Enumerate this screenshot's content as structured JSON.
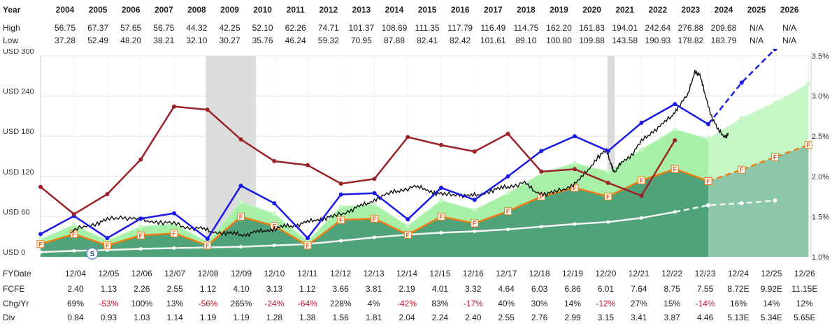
{
  "top_table": {
    "year_label": "Year",
    "high_label": "High",
    "low_label": "Low",
    "years": [
      "2004",
      "2005",
      "2006",
      "2007",
      "2008",
      "2009",
      "2010",
      "2011",
      "2012",
      "2013",
      "2014",
      "2015",
      "2016",
      "2017",
      "2018",
      "2019",
      "2020",
      "2021",
      "2022",
      "2023",
      "2024",
      "2025",
      "2026"
    ],
    "high": [
      "56.75",
      "67.37",
      "57.65",
      "56.75",
      "44.32",
      "42.25",
      "52.10",
      "62.26",
      "74.71",
      "101.37",
      "108.69",
      "111.35",
      "117.79",
      "116.49",
      "114.75",
      "162.20",
      "161.83",
      "194.01",
      "242.64",
      "276.88",
      "209.68",
      "N/A",
      "N/A"
    ],
    "low": [
      "37.28",
      "52.49",
      "48.20",
      "38.21",
      "32.10",
      "30.27",
      "35.76",
      "46.24",
      "59.32",
      "70.95",
      "87.88",
      "82.41",
      "82.42",
      "101.61",
      "89.10",
      "100.80",
      "109.88",
      "143.58",
      "190.93",
      "178.82",
      "183.79",
      "N/A",
      "N/A"
    ]
  },
  "bottom_table": {
    "fy_label": "FYDate",
    "fcfe_label": "FCFE",
    "chg_label": "Chg/Yr",
    "div_label": "Div",
    "dates": [
      "12/04",
      "12/05",
      "12/06",
      "12/07",
      "12/08",
      "12/09",
      "12/10",
      "12/11",
      "12/12",
      "12/13",
      "12/14",
      "12/15",
      "12/16",
      "12/17",
      "12/18",
      "12/19",
      "12/20",
      "12/21",
      "12/22",
      "12/23",
      "12/24",
      "12/25",
      "12/26"
    ],
    "fcfe": [
      "2.40",
      "1.13",
      "2.26",
      "2.55",
      "1.12",
      "4.10",
      "3.13",
      "1.12",
      "3.66",
      "3.81",
      "2.19",
      "4.01",
      "3.32",
      "4.64",
      "6.03",
      "6.86",
      "6.01",
      "7.64",
      "8.75",
      "7.55",
      "8.72E",
      "9.92E",
      "11.15E"
    ],
    "chg": [
      "69%",
      "-53%",
      "100%",
      "13%",
      "-56%",
      "265%",
      "-24%",
      "-64%",
      "228%",
      "4%",
      "-42%",
      "83%",
      "-17%",
      "40%",
      "30%",
      "14%",
      "-12%",
      "27%",
      "15%",
      "-14%",
      "16%",
      "14%",
      "12%"
    ],
    "div": [
      "0.84",
      "0.93",
      "1.03",
      "1.14",
      "1.19",
      "1.19",
      "1.28",
      "1.38",
      "1.56",
      "1.81",
      "2.04",
      "2.24",
      "2.40",
      "2.55",
      "2.76",
      "2.99",
      "3.15",
      "3.41",
      "3.87",
      "4.46",
      "5.13E",
      "5.34E",
      "5.65E"
    ]
  },
  "chart_data": {
    "type": "line",
    "x_labels": [
      "12/04",
      "12/05",
      "12/06",
      "12/07",
      "12/08",
      "12/09",
      "12/10",
      "12/11",
      "12/12",
      "12/13",
      "12/14",
      "12/15",
      "12/16",
      "12/17",
      "12/18",
      "12/19",
      "12/20",
      "12/21",
      "12/22",
      "12/23",
      "12/24",
      "12/25",
      "12/26"
    ],
    "left_axis": {
      "ticks": [
        "USD 0",
        "USD 60",
        "USD 120",
        "USD 180",
        "USD 240",
        "USD 300"
      ],
      "range": [
        0,
        300
      ]
    },
    "right_axis": {
      "ticks": [
        "1.0%",
        "1.5%",
        "2.0%",
        "2.5%",
        "3.0%",
        "3.5%"
      ],
      "range": [
        1.0,
        3.5
      ]
    },
    "recession_bands": [
      {
        "from": 2007.95,
        "to": 2009.45
      },
      {
        "from": 2019.98,
        "to": 2020.2
      }
    ],
    "blue_line": {
      "actual": [
        34,
        61,
        28,
        57,
        65,
        27,
        106,
        80,
        28,
        93,
        95,
        56,
        103,
        85,
        120,
        158,
        180,
        158,
        200,
        228,
        198
      ],
      "projected": [
        198,
        260,
        310,
        345
      ]
    },
    "orange_fcfe_value": {
      "actual": [
        19,
        34,
        17,
        32,
        35,
        17,
        60,
        46,
        17,
        55,
        57,
        33,
        60,
        50,
        68,
        90,
        103,
        90,
        114,
        131,
        113
      ],
      "projected": [
        113,
        130,
        149,
        167
      ]
    },
    "white_dividend_line": {
      "actual": [
        7,
        9,
        10,
        12,
        13,
        14,
        15,
        17,
        19,
        24,
        29,
        33,
        36,
        38,
        41,
        45,
        49,
        52,
        58,
        67
      ],
      "projected": [
        67,
        77,
        80,
        84
      ]
    },
    "green_band_top": {
      "actual": [
        26,
        48,
        24,
        45,
        49,
        22,
        82,
        64,
        23,
        75,
        78,
        46,
        84,
        70,
        95,
        124,
        140,
        127,
        160,
        190,
        176
      ],
      "projected": [
        176,
        207,
        230,
        258
      ]
    },
    "dark_red_dividend_yield": [
      1.87,
      1.53,
      1.78,
      2.21,
      2.87,
      2.83,
      2.46,
      2.19,
      2.14,
      1.91,
      1.97,
      2.49,
      2.39,
      2.31,
      2.53,
      2.06,
      2.09,
      1.92,
      1.76,
      2.45
    ],
    "price_series_points": [
      [
        2003.9,
        36
      ],
      [
        2004.3,
        46
      ],
      [
        2004.7,
        50
      ],
      [
        2005.0,
        55
      ],
      [
        2005.4,
        60
      ],
      [
        2005.8,
        56
      ],
      [
        2006.2,
        54
      ],
      [
        2006.6,
        52
      ],
      [
        2007.0,
        49
      ],
      [
        2007.4,
        44
      ],
      [
        2007.8,
        42
      ],
      [
        2008.1,
        38
      ],
      [
        2008.5,
        36
      ],
      [
        2008.8,
        34
      ],
      [
        2009.1,
        33
      ],
      [
        2009.4,
        36
      ],
      [
        2009.7,
        39
      ],
      [
        2010.0,
        42
      ],
      [
        2010.3,
        45
      ],
      [
        2010.6,
        47
      ],
      [
        2010.9,
        50
      ],
      [
        2011.2,
        55
      ],
      [
        2011.5,
        58
      ],
      [
        2011.8,
        60
      ],
      [
        2012.2,
        68
      ],
      [
        2012.5,
        74
      ],
      [
        2012.8,
        80
      ],
      [
        2013.1,
        88
      ],
      [
        2013.5,
        95
      ],
      [
        2013.8,
        100
      ],
      [
        2014.2,
        104
      ],
      [
        2014.5,
        102
      ],
      [
        2014.8,
        96
      ],
      [
        2015.1,
        92
      ],
      [
        2015.5,
        94
      ],
      [
        2015.8,
        90
      ],
      [
        2016.1,
        93
      ],
      [
        2016.5,
        99
      ],
      [
        2016.8,
        102
      ],
      [
        2017.1,
        106
      ],
      [
        2017.5,
        110
      ],
      [
        2017.8,
        98
      ],
      [
        2018.1,
        94
      ],
      [
        2018.4,
        96
      ],
      [
        2018.8,
        104
      ],
      [
        2019.1,
        112
      ],
      [
        2019.4,
        130
      ],
      [
        2019.7,
        150
      ],
      [
        2019.95,
        158
      ],
      [
        2020.1,
        138
      ],
      [
        2020.2,
        124
      ],
      [
        2020.4,
        142
      ],
      [
        2020.7,
        152
      ],
      [
        2021.0,
        172
      ],
      [
        2021.3,
        186
      ],
      [
        2021.6,
        196
      ],
      [
        2021.9,
        210
      ],
      [
        2022.1,
        224
      ],
      [
        2022.4,
        242
      ],
      [
        2022.6,
        278
      ],
      [
        2022.75,
        270
      ],
      [
        2022.9,
        244
      ],
      [
        2023.1,
        210
      ],
      [
        2023.3,
        188
      ],
      [
        2023.5,
        180
      ],
      [
        2023.6,
        182
      ]
    ],
    "markers": {
      "f_label": "F",
      "s_label": "S"
    }
  }
}
